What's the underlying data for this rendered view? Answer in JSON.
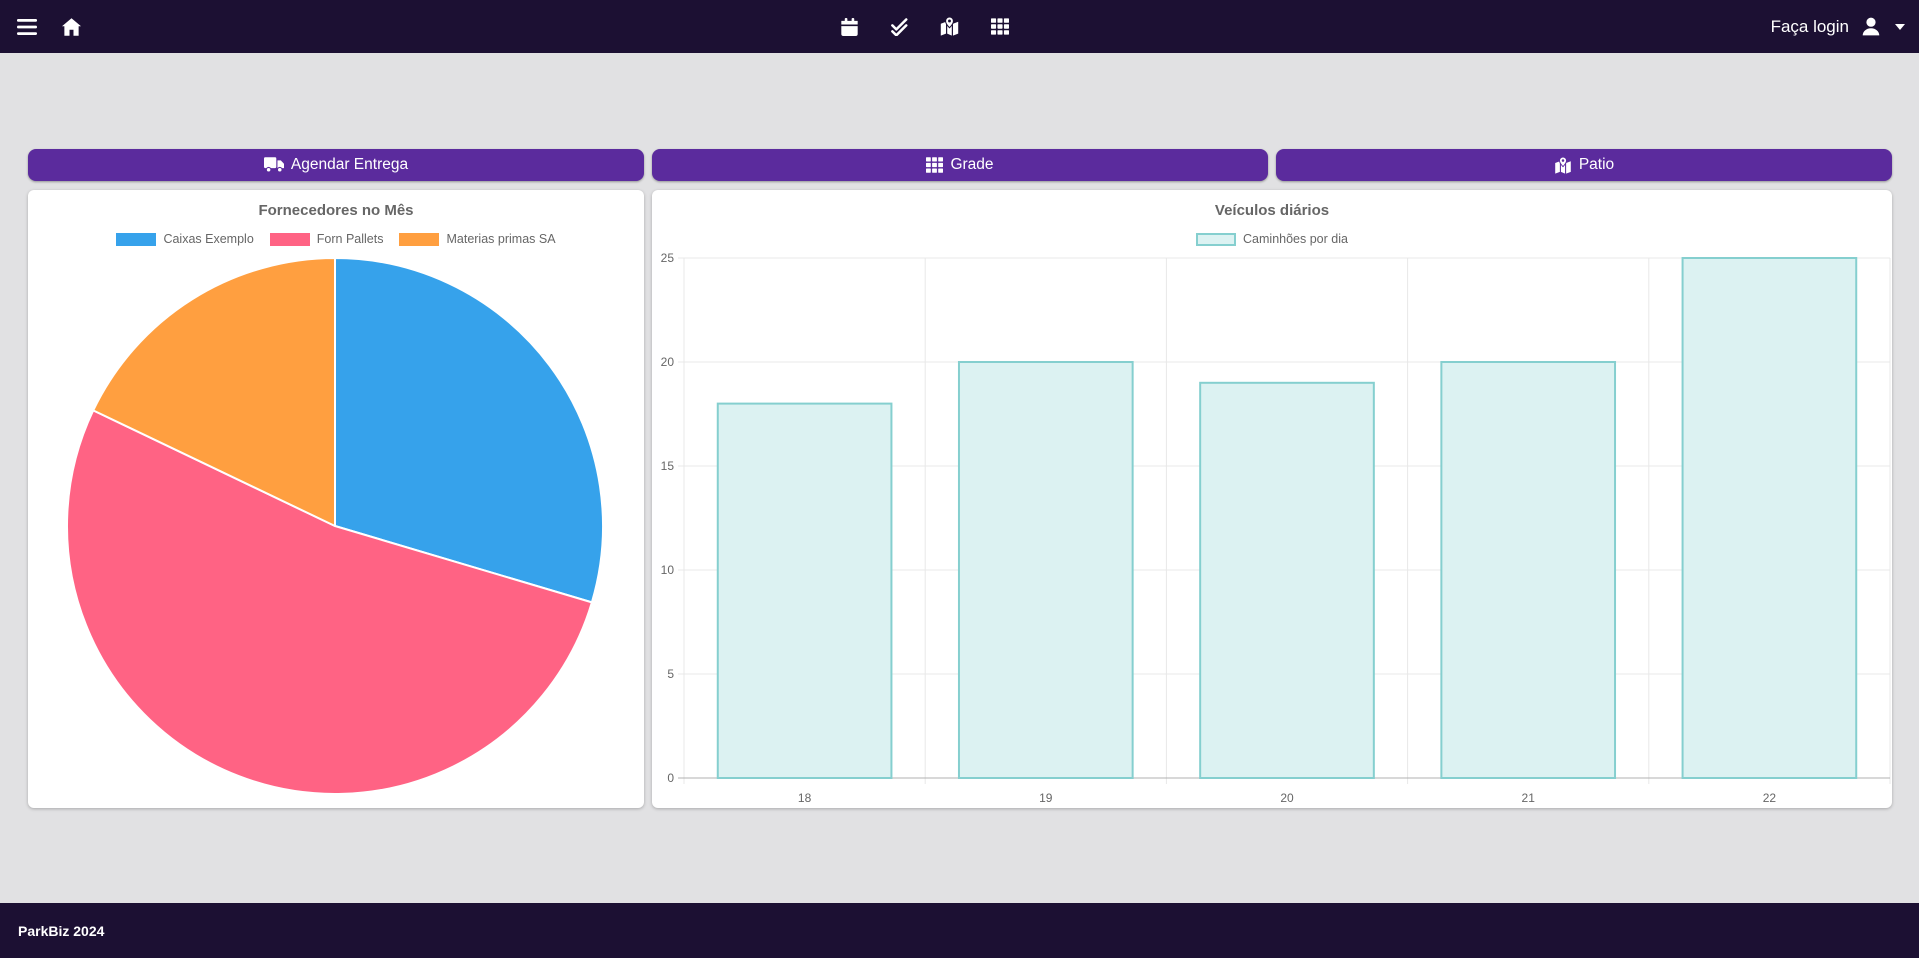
{
  "navbar": {
    "login_label": "Faça login",
    "left_icons": [
      "menu",
      "home"
    ],
    "center_icons": [
      "calendar",
      "check-double",
      "map-location-dot",
      "table-cells"
    ],
    "right_icons": [
      "user",
      "caret-down"
    ]
  },
  "action_buttons": [
    {
      "label": "Agendar Entrega",
      "icon": "truck-icon"
    },
    {
      "label": "Grade",
      "icon": "table-cells-icon"
    },
    {
      "label": "Patio",
      "icon": "map-location-icon"
    }
  ],
  "chart_data": [
    {
      "type": "pie",
      "title": "Fornecedores no Mês",
      "labels": [
        "Caixas Exemplo",
        "Forn Pallets",
        "Materias primas SA"
      ],
      "values_percent": [
        29.6,
        52.5,
        17.9
      ],
      "colors": [
        "#36A2EB",
        "#FF6384",
        "#FF9F40"
      ],
      "legend_position": "top"
    },
    {
      "type": "bar",
      "title": "Veículos diários",
      "categories": [
        "18",
        "19",
        "20",
        "21",
        "22"
      ],
      "series": [
        {
          "name": "Caminhões por dia",
          "values": [
            18,
            20,
            19,
            20,
            25
          ]
        }
      ],
      "ylim": [
        0,
        25
      ],
      "ytick_step": 5,
      "grid": true,
      "legend_position": "top",
      "bar_fill": "#dcf2f2",
      "bar_border": "#85cfcf"
    }
  ],
  "footer": {
    "text": "ParkBiz 2024"
  },
  "theme": {
    "navbar_bg": "#1c1033",
    "page_bg": "#e1e1e3",
    "button_purple": "#5b2b9d",
    "muted_text": "#666666",
    "grid_line": "#e8e8e8",
    "axis_line": "#b0b0b0"
  }
}
